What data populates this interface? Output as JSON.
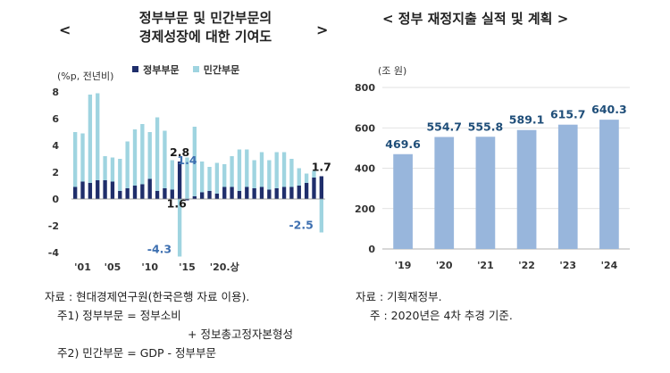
{
  "left": {
    "open_angle": "<",
    "close_angle": ">",
    "title_line1": "정부부문 및 민간부문의",
    "title_line2": "경제성장에 대한 기여도",
    "unit": "(%p, 전년비)",
    "legend": [
      "정부부문",
      "민간부문"
    ],
    "colors": {
      "gov": "#1f2e6b",
      "priv": "#9fd4e0",
      "label_blue": "#3d6fb0",
      "label_dark": "#1a1a1a"
    },
    "chart_data": {
      "type": "bar",
      "stacked_signed": true,
      "ylim": [
        -4,
        8
      ],
      "yticks": [
        -4,
        -2,
        0,
        2,
        4,
        6,
        8
      ],
      "xtick_labels": [
        "'01",
        "'05",
        "'10",
        "'15",
        "'20.상"
      ],
      "xtick_index": [
        1,
        5,
        10,
        15,
        20
      ],
      "series": [
        {
          "name": "정부부문",
          "values": [
            0.9,
            1.3,
            1.2,
            1.4,
            1.4,
            1.3,
            0.6,
            0.8,
            1.0,
            1.1,
            1.5,
            0.6,
            0.8,
            0.7,
            2.8,
            -0.1,
            0.2,
            0.5,
            0.6,
            0.4,
            0.9,
            0.9,
            0.6,
            0.9,
            0.8,
            0.9,
            0.7,
            0.8,
            0.9,
            0.9,
            1.0,
            1.2,
            1.6,
            1.7
          ]
        },
        {
          "name": "민간부문",
          "values": [
            4.1,
            3.6,
            6.6,
            6.5,
            1.8,
            1.8,
            2.4,
            3.5,
            4.2,
            4.5,
            3.5,
            5.5,
            4.3,
            2.2,
            -4.3,
            3.1,
            5.2,
            2.3,
            1.8,
            2.3,
            1.7,
            2.3,
            3.1,
            2.8,
            2.1,
            2.6,
            2.2,
            2.7,
            2.6,
            2.1,
            1.3,
            0.7,
            0.5,
            -2.5
          ]
        }
      ],
      "annotations": [
        {
          "text": "2.8",
          "index": 14,
          "value": 2.8,
          "color": "dark"
        },
        {
          "text": "1.4",
          "index": 15,
          "value": 2.2,
          "color": "blue"
        },
        {
          "text": "-4.3",
          "index": 14,
          "value": -4.3,
          "color": "blue"
        },
        {
          "text": "1.6",
          "index": 16,
          "value": -0.9,
          "color": "dark"
        },
        {
          "text": "1.7",
          "index": 33,
          "value": 1.7,
          "color": "dark"
        },
        {
          "text": "-2.5",
          "index": 33,
          "value": -2.5,
          "color": "blue"
        }
      ]
    }
  },
  "right": {
    "title": "< 정부 재정지출 실적 및 계획 >",
    "unit": "(조 원)",
    "colors": {
      "bar": "#98b6dc",
      "label": "#1f4e79"
    },
    "chart_data": {
      "type": "bar",
      "categories": [
        "'19",
        "'20",
        "'21",
        "'22",
        "'23",
        "'24"
      ],
      "values": [
        469.6,
        554.7,
        555.8,
        589.1,
        615.7,
        640.3
      ],
      "value_labels": [
        "469.6",
        "554.7",
        "555.8",
        "589.1",
        "615.7",
        "640.3"
      ],
      "ylim": [
        0,
        800
      ],
      "yticks": [
        0,
        200,
        400,
        600,
        800
      ]
    }
  },
  "notes_left": [
    "자료 : 현대경제연구원(한국은행 자료 이용).",
    "주1) 정부부문 = 정부소비",
    "+ 정보총고정자본형성",
    "주2) 민간부문 = GDP - 정부부문"
  ],
  "notes_right": [
    "자료 : 기획재정부.",
    "주 : 2020년은 4차 추경 기준."
  ]
}
